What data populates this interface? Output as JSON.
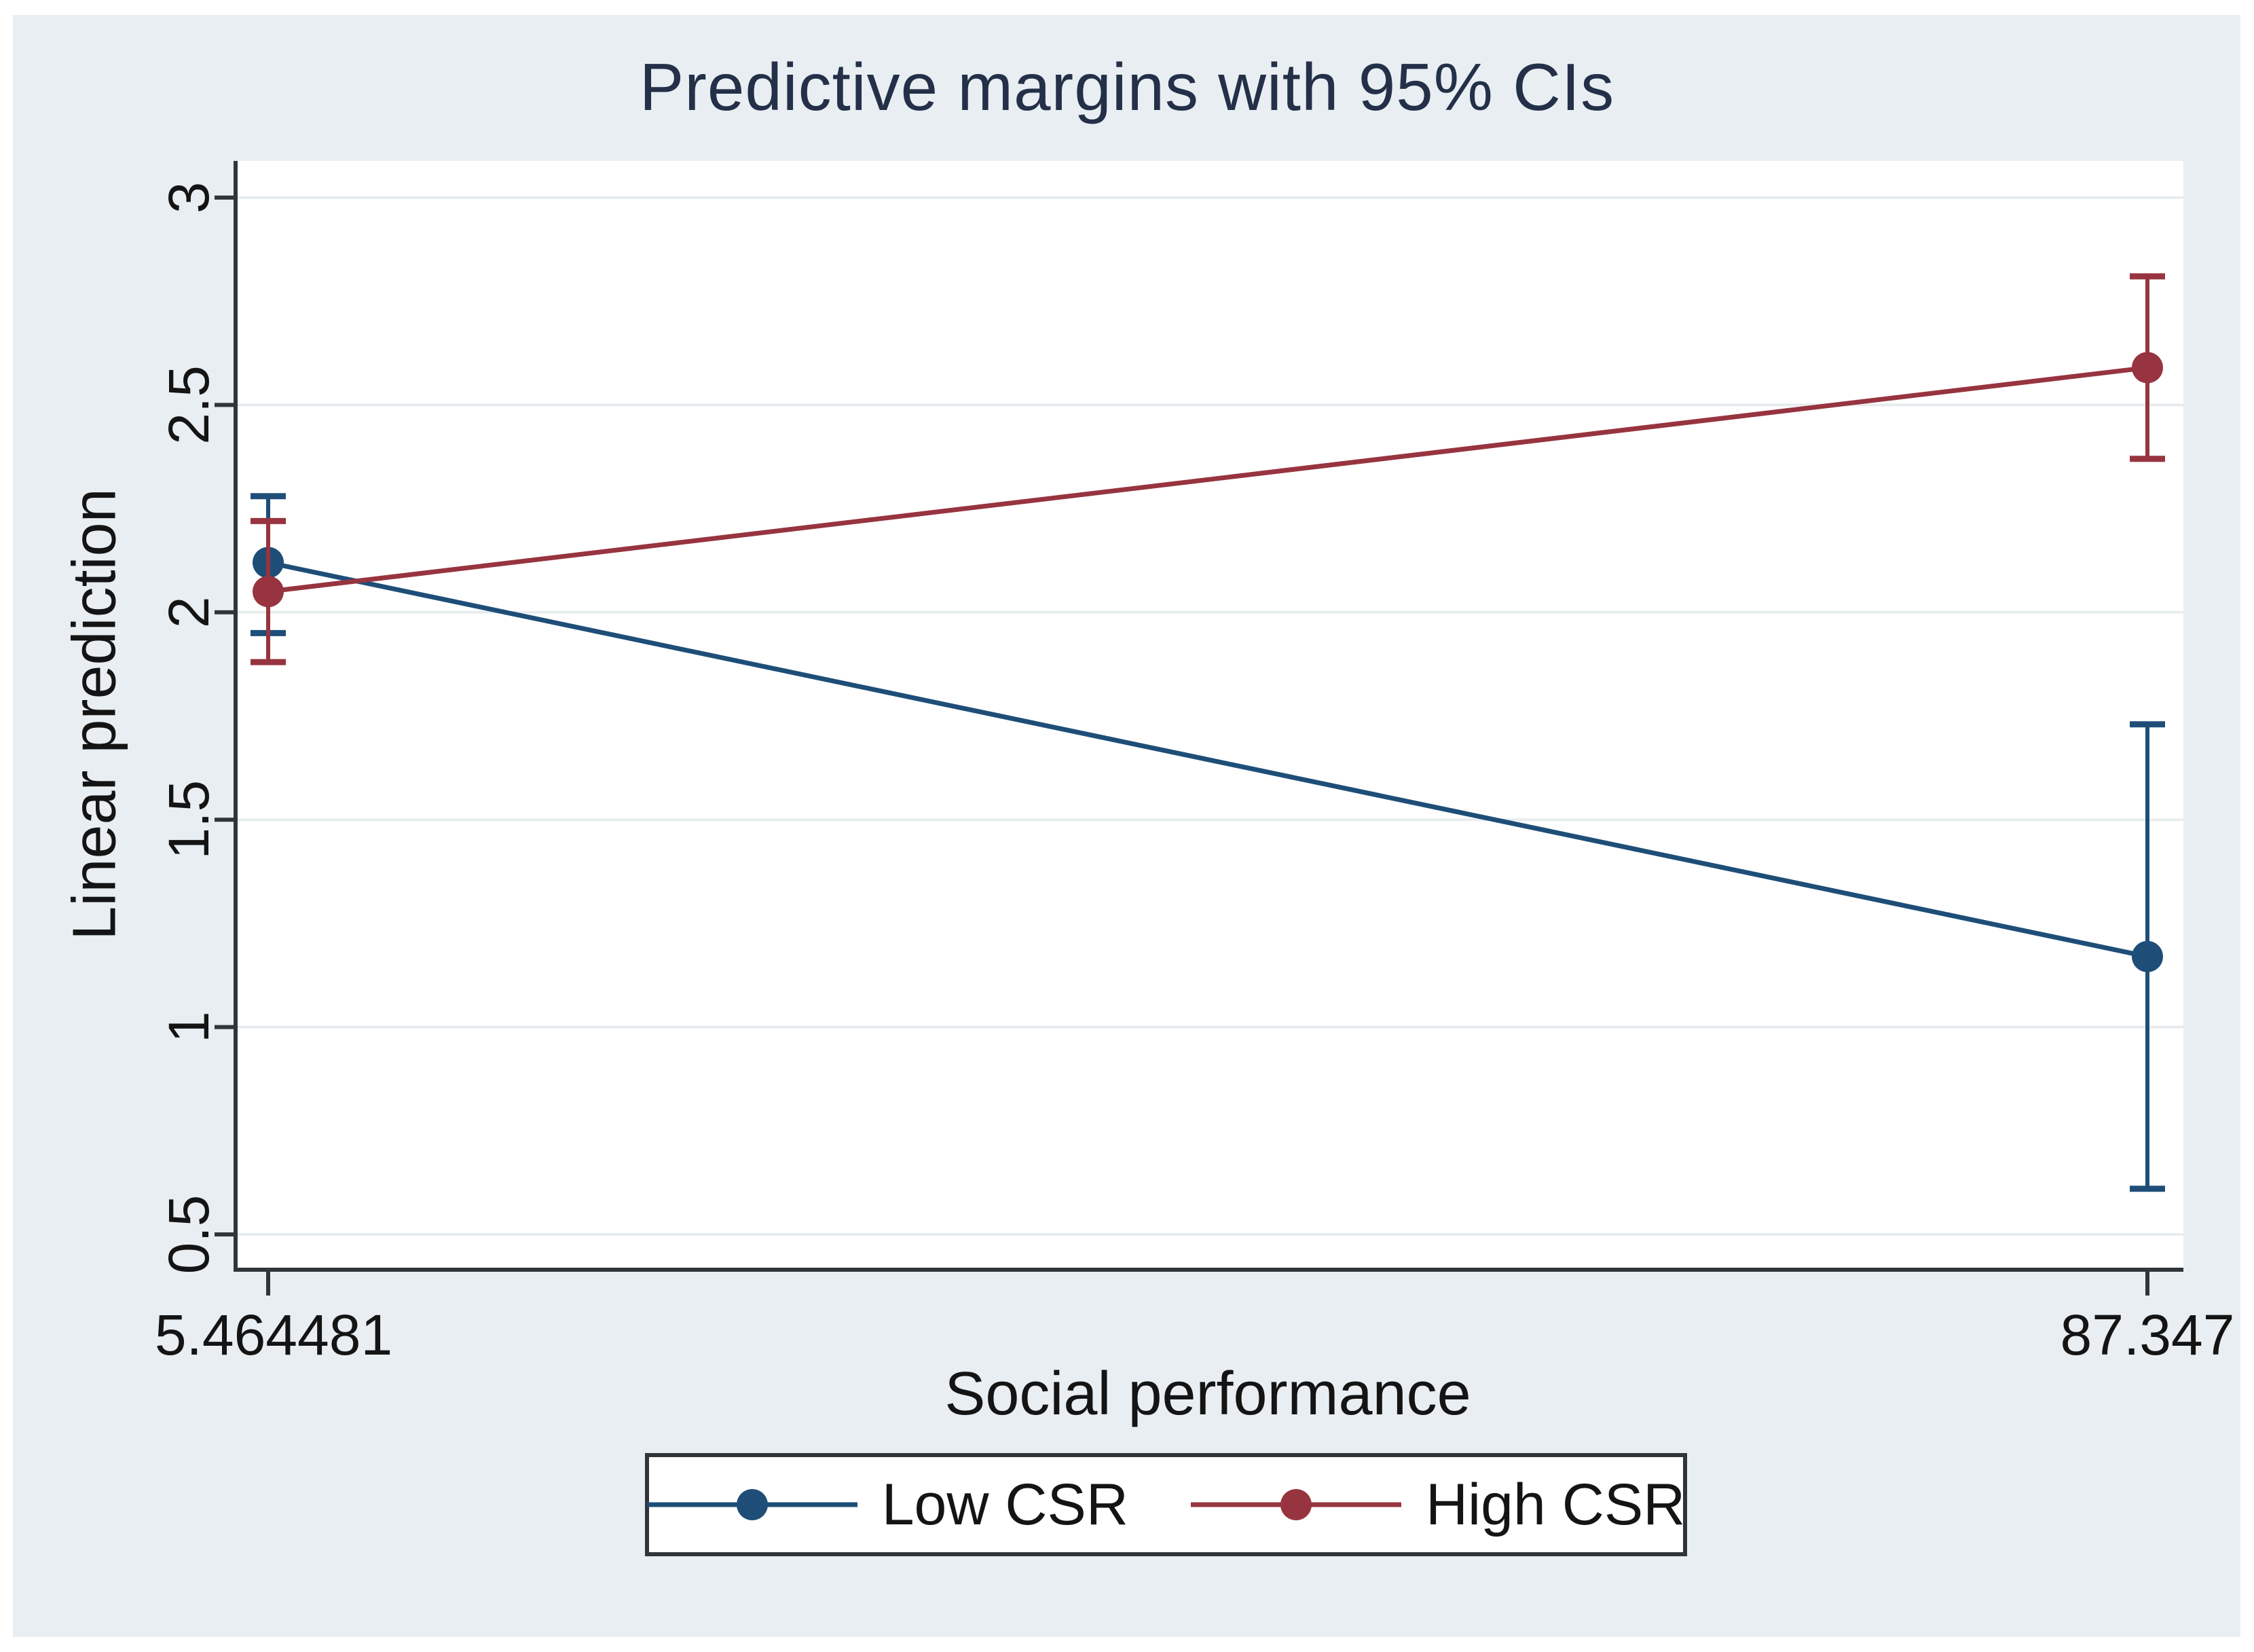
{
  "title": "Predictive margins with 95% CIs",
  "colors": {
    "canvas_background": "#e8eef2",
    "plot_background": "#ffffff",
    "gridline": "#e7edef",
    "axis": "#2f353a",
    "text": "#141414",
    "title_text": "#233048",
    "low_csr": "#1e4e78",
    "high_csr": "#97343f"
  },
  "chart_data": {
    "type": "line",
    "title": "Predictive margins with 95% CIs",
    "xlabel": "Social performance",
    "ylabel": "Linear prediction",
    "x": [
      5.464481,
      87.347
    ],
    "x_tick_labels": [
      "5.464481",
      "87.347"
    ],
    "y_ticks": [
      0.5,
      1,
      1.5,
      2,
      2.5,
      3
    ],
    "y_tick_labels": [
      "0.5",
      "1",
      "1.5",
      "2",
      "2.5",
      "3"
    ],
    "ylim": [
      0.42,
      3.09
    ],
    "grid": true,
    "error_bars": "95% CI",
    "legend_position": "bottom",
    "series": [
      {
        "name": "Low CSR",
        "color": "#1e4e78",
        "values": [
          2.12,
          1.17
        ],
        "ci_low": [
          1.95,
          0.61
        ],
        "ci_high": [
          2.28,
          1.73
        ]
      },
      {
        "name": "High CSR",
        "color": "#97343f",
        "values": [
          2.05,
          2.59
        ],
        "ci_low": [
          1.88,
          2.37
        ],
        "ci_high": [
          2.22,
          2.81
        ]
      }
    ]
  },
  "legend": {
    "items": [
      {
        "label": "Low CSR"
      },
      {
        "label": "High CSR"
      }
    ]
  }
}
